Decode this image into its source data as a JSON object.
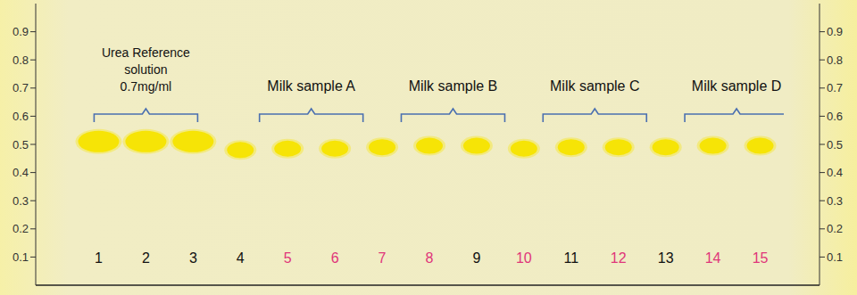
{
  "chart_data": {
    "type": "scatter",
    "categories": [
      "1",
      "2",
      "3",
      "4",
      "5",
      "6",
      "7",
      "8",
      "9",
      "10",
      "11",
      "12",
      "13",
      "14",
      "15"
    ],
    "values": [
      0.51,
      0.51,
      0.51,
      0.48,
      0.485,
      0.485,
      0.49,
      0.495,
      0.495,
      0.485,
      0.49,
      0.49,
      0.49,
      0.495,
      0.495
    ],
    "color": "#f5e400",
    "ylim": [
      0,
      1
    ],
    "yticks": [
      0.1,
      0.2,
      0.3,
      0.4,
      0.5,
      0.6,
      0.7,
      0.8,
      0.9
    ],
    "grid": false,
    "annotations": [
      {
        "text": [
          "Urea Reference",
          "solution",
          "0.7mg/ml"
        ],
        "from": "1",
        "to": "3"
      },
      {
        "text": [
          "Milk sample A"
        ],
        "from": "5",
        "to": "6"
      },
      {
        "text": [
          "Milk sample B"
        ],
        "from": "8",
        "to": "9"
      },
      {
        "text": [
          "Milk sample C"
        ],
        "from": "11",
        "to": "12"
      },
      {
        "text": [
          "Milk sample D"
        ],
        "from": "14",
        "to": "15"
      }
    ]
  }
}
